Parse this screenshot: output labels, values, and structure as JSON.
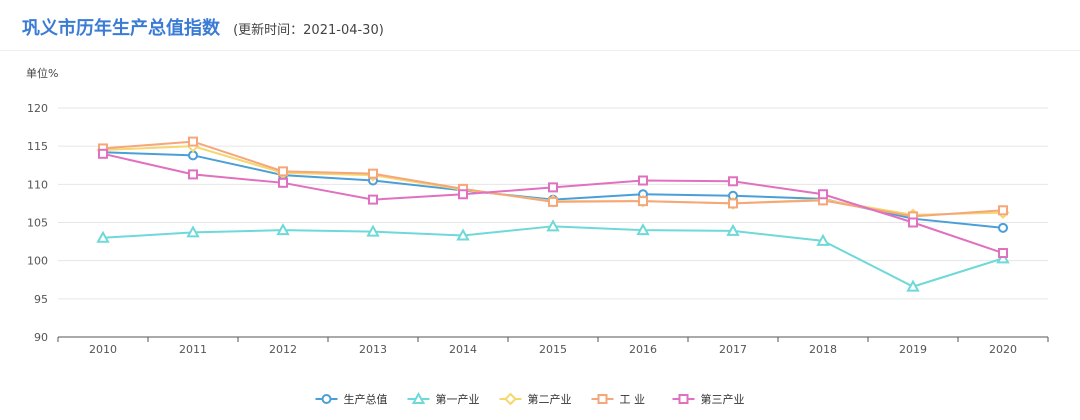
{
  "header": {
    "title": "巩义市历年生产总值指数",
    "subtitle": "(更新时间：2021-04-30)"
  },
  "chart_data": {
    "type": "line",
    "title": "巩义市历年生产总值指数",
    "ylabel": "单位%",
    "xlabel": "",
    "categories": [
      "2010",
      "2011",
      "2012",
      "2013",
      "2014",
      "2015",
      "2016",
      "2017",
      "2018",
      "2019",
      "2020"
    ],
    "ylim": [
      90,
      120
    ],
    "yticks": [
      90,
      95,
      100,
      105,
      110,
      115,
      120
    ],
    "grid": true,
    "legend_position": "bottom-center",
    "series": [
      {
        "name": "生产总值",
        "color": "#4a9fd8",
        "marker": "circle",
        "values": [
          114.2,
          113.8,
          111.2,
          110.5,
          109.2,
          108.0,
          108.7,
          108.5,
          108.1,
          105.5,
          104.3
        ]
      },
      {
        "name": "第一产业",
        "color": "#6fd8d8",
        "marker": "triangle",
        "values": [
          103.0,
          103.7,
          104.0,
          103.8,
          103.3,
          104.5,
          104.0,
          103.9,
          102.6,
          96.6,
          100.3
        ]
      },
      {
        "name": "第二产业",
        "color": "#f5d76e",
        "marker": "diamond",
        "values": [
          114.5,
          115.0,
          111.5,
          111.2,
          109.3,
          107.8,
          107.8,
          107.5,
          108.0,
          106.0,
          106.3
        ]
      },
      {
        "name": "工 业",
        "color": "#f5a67a",
        "marker": "square",
        "values": [
          114.7,
          115.6,
          111.7,
          111.4,
          109.4,
          107.7,
          107.8,
          107.5,
          107.9,
          105.8,
          106.6
        ]
      },
      {
        "name": "第三产业",
        "color": "#e070c0",
        "marker": "square",
        "values": [
          114.0,
          111.3,
          110.2,
          108.0,
          108.7,
          109.6,
          110.5,
          110.4,
          108.7,
          105.0,
          101.0
        ]
      }
    ]
  }
}
